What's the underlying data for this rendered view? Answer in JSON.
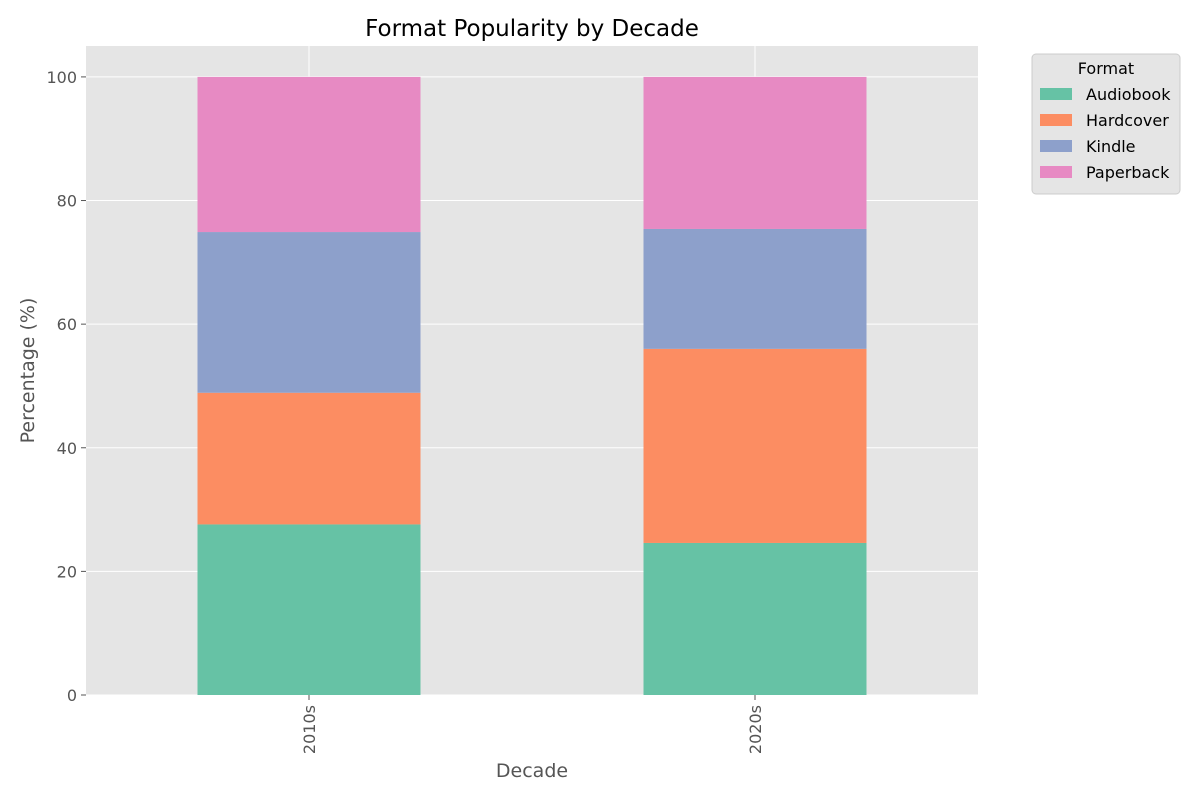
{
  "chart_data": {
    "type": "bar",
    "stacked": true,
    "title": "Format Popularity by Decade",
    "xlabel": "Decade",
    "ylabel": "Percentage (%)",
    "categories": [
      "2010s",
      "2020s"
    ],
    "series": [
      {
        "name": "Audiobook",
        "values": [
          27.6,
          24.6
        ],
        "color": "#66c2a5"
      },
      {
        "name": "Hardcover",
        "values": [
          21.3,
          31.4
        ],
        "color": "#fc8d62"
      },
      {
        "name": "Kindle",
        "values": [
          26.0,
          19.4
        ],
        "color": "#8da0cb"
      },
      {
        "name": "Paperback",
        "values": [
          25.1,
          24.6
        ],
        "color": "#e78ac3"
      }
    ],
    "ylim": [
      0,
      105
    ],
    "yticks": [
      0,
      20,
      40,
      60,
      80,
      100
    ],
    "grid": true,
    "legend": {
      "title": "Format",
      "placement": "outside-top-right"
    },
    "colors": {
      "plot_background": "#e5e5e5",
      "grid": "#ffffff",
      "text": "#555555"
    }
  }
}
